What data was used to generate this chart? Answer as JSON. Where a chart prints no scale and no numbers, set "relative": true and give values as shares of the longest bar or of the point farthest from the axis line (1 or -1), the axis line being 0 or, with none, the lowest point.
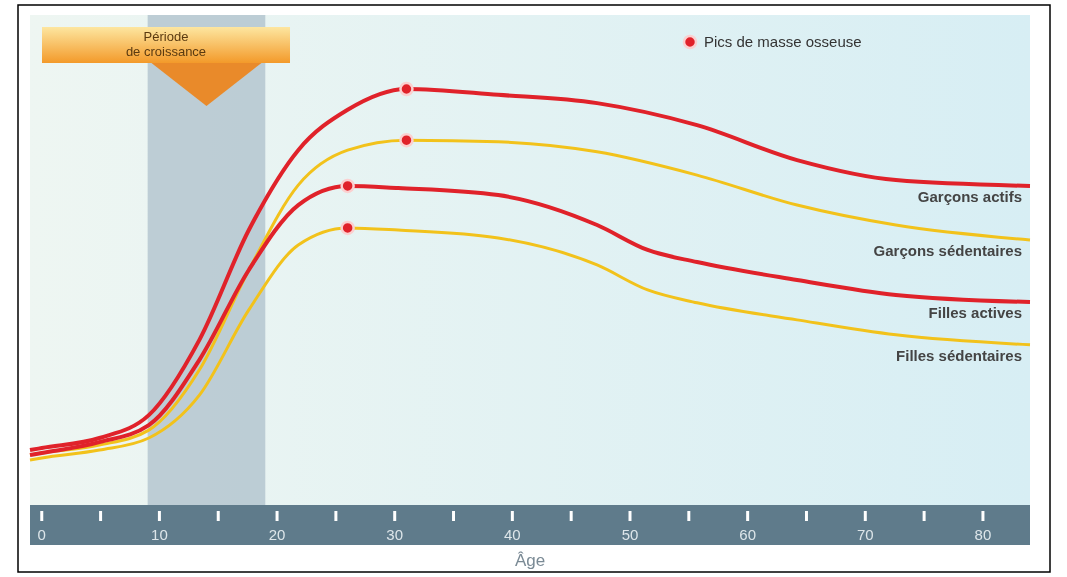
{
  "chart_data": {
    "type": "line",
    "relative": true,
    "xlabel": "Âge",
    "xlim": [
      -1,
      84
    ],
    "xticks": [
      0,
      {
        "value": 5,
        "label": null
      },
      10,
      {
        "value": 15,
        "label": null
      },
      20,
      {
        "value": 25,
        "label": null
      },
      30,
      {
        "value": 35,
        "label": null
      },
      40,
      {
        "value": 45,
        "label": null
      },
      50,
      {
        "value": 55,
        "label": null
      },
      60,
      {
        "value": 65,
        "label": null
      },
      70,
      {
        "value": 75,
        "label": null
      },
      80
    ],
    "legend": "top right",
    "grid": false,
    "bands": [
      {
        "axis": "x",
        "from": 9,
        "to": 19,
        "label": "Période de croissance",
        "color": "#9fb3c2"
      }
    ],
    "series": [
      {
        "name": "Garçons actifs",
        "color": "#e0222a",
        "marker": "none",
        "x": [
          -1,
          0,
          4.9,
          9.1,
          13.4,
          17.6,
          21.8,
          26,
          31,
          38.8,
          47.2,
          55.7,
          64.2,
          72.6,
          84
        ],
        "values": [
          0.132,
          0.137,
          0.161,
          0.216,
          0.397,
          0.661,
          0.853,
          0.95,
          1,
          0.986,
          0.966,
          0.913,
          0.829,
          0.781,
          0.767
        ]
      },
      {
        "name": "Garçons sédentaires",
        "color": "#f2c21b",
        "marker": "none",
        "x": [
          -1,
          0,
          4.9,
          9.1,
          13.4,
          17.6,
          21.8,
          26,
          31,
          38.8,
          47.2,
          55.7,
          64.2,
          72.6,
          84
        ],
        "values": [
          0.12,
          0.125,
          0.144,
          0.18,
          0.325,
          0.565,
          0.769,
          0.853,
          0.877,
          0.873,
          0.849,
          0.793,
          0.721,
          0.673,
          0.637
        ]
      },
      {
        "name": "Filles actives",
        "color": "#e0222a",
        "marker": "none",
        "x": [
          -1,
          0,
          4.9,
          9.1,
          13.4,
          17.6,
          21.8,
          26,
          30.3,
          38.8,
          47.2,
          51.5,
          55.7,
          64.2,
          72.6,
          84
        ],
        "values": [
          0.12,
          0.125,
          0.151,
          0.192,
          0.349,
          0.565,
          0.721,
          0.767,
          0.762,
          0.745,
          0.673,
          0.613,
          0.584,
          0.541,
          0.505,
          0.488
        ]
      },
      {
        "name": "Filles sédentaires",
        "color": "#f2c21b",
        "marker": "none",
        "x": [
          -1,
          0,
          4.9,
          9.1,
          13.4,
          17.6,
          21.8,
          26,
          30.3,
          38.8,
          47.2,
          51.5,
          55.7,
          64.2,
          72.6,
          84
        ],
        "values": [
          0.108,
          0.113,
          0.132,
          0.161,
          0.264,
          0.469,
          0.625,
          0.666,
          0.661,
          0.642,
          0.577,
          0.517,
          0.486,
          0.445,
          0.409,
          0.385
        ]
      },
      {
        "name": "Pics de masse osseuse",
        "type": "scatter",
        "color": "#e0222a",
        "marker": "circle",
        "x": [
          31,
          31,
          26,
          26
        ],
        "values": [
          1,
          0.877,
          0.767,
          0.666
        ]
      }
    ]
  }
}
